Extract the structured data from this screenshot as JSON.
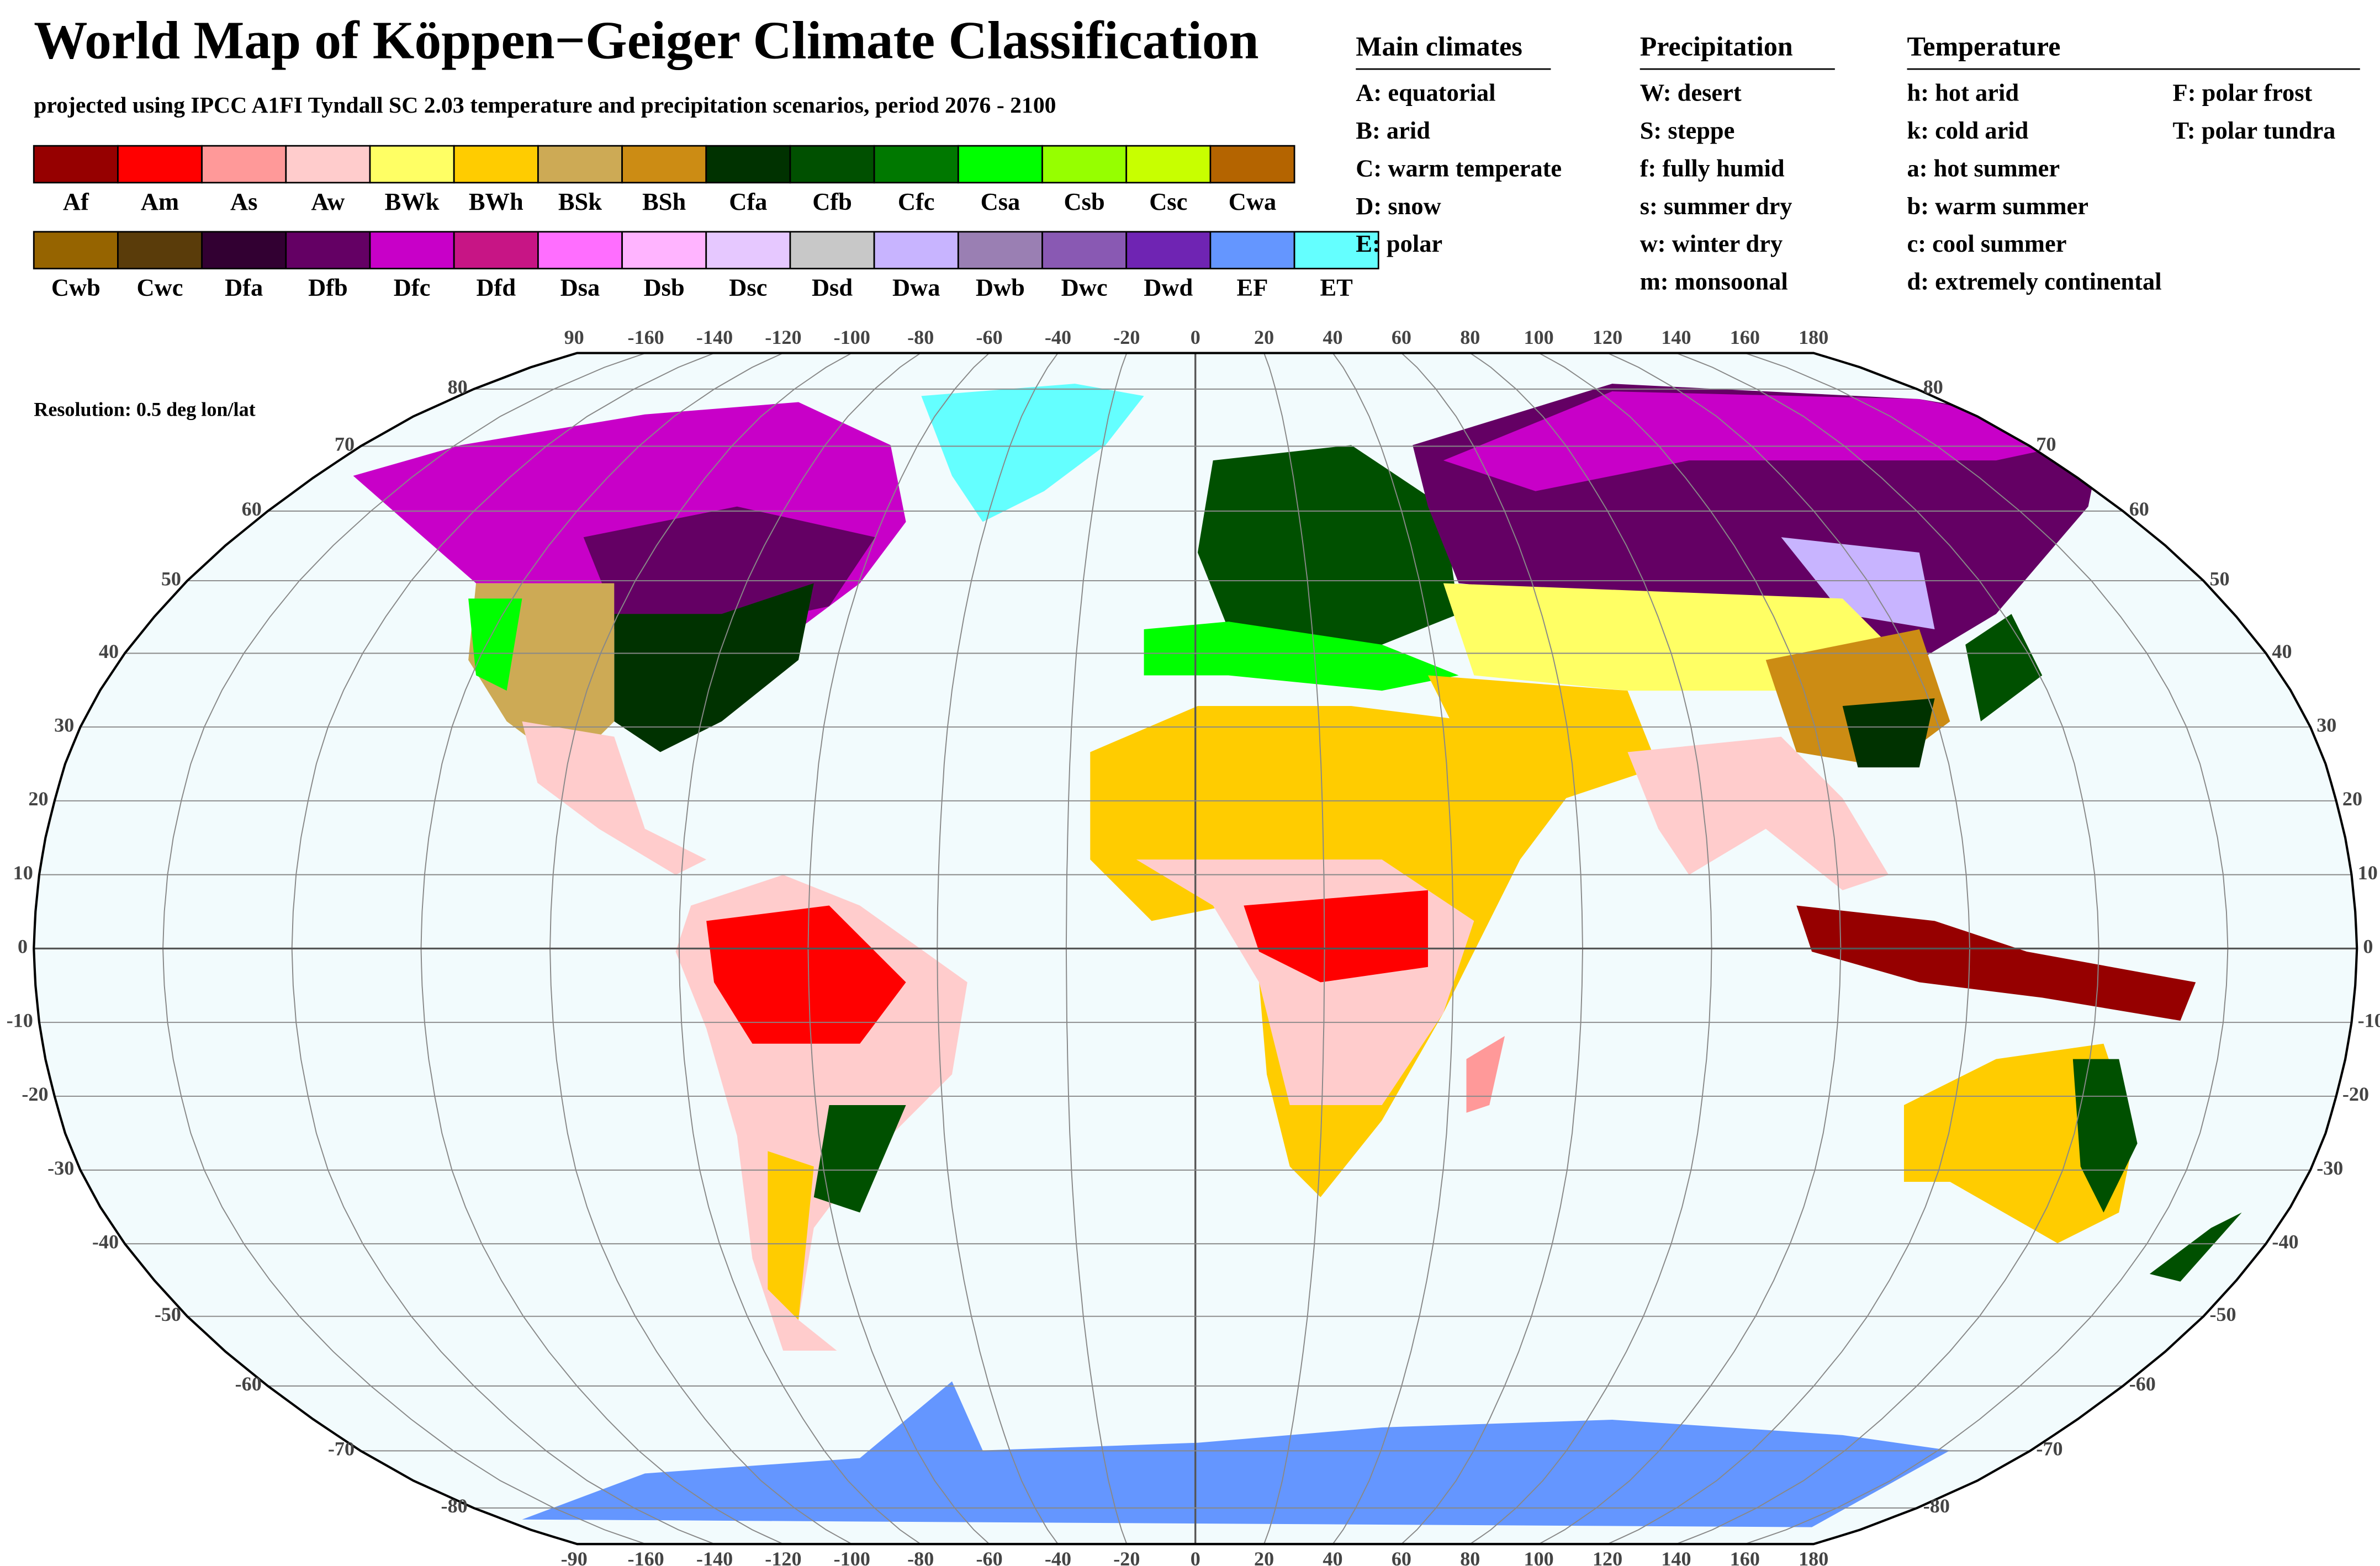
{
  "header": {
    "title": "World Map of Köppen−Geiger Climate Classification",
    "subtitle": "projected using IPCC A1FI Tyndall SC 2.03 temperature and precipitation scenarios, period 2076 - 2100"
  },
  "legend": {
    "rows": [
      [
        {
          "code": "Af",
          "color": "#960000"
        },
        {
          "code": "Am",
          "color": "#ff0000"
        },
        {
          "code": "As",
          "color": "#ff9999"
        },
        {
          "code": "Aw",
          "color": "#ffcccc"
        },
        {
          "code": "BWk",
          "color": "#ffff64"
        },
        {
          "code": "BWh",
          "color": "#ffcc00"
        },
        {
          "code": "BSk",
          "color": "#cdaa55"
        },
        {
          "code": "BSh",
          "color": "#cc8c14"
        },
        {
          "code": "Cfa",
          "color": "#003200"
        },
        {
          "code": "Cfb",
          "color": "#005000"
        },
        {
          "code": "Cfc",
          "color": "#007800"
        },
        {
          "code": "Csa",
          "color": "#00ff00"
        },
        {
          "code": "Csb",
          "color": "#96ff00"
        },
        {
          "code": "Csc",
          "color": "#c8ff00"
        },
        {
          "code": "Cwa",
          "color": "#b46400"
        }
      ],
      [
        {
          "code": "Cwb",
          "color": "#966400"
        },
        {
          "code": "Cwc",
          "color": "#5a3c0a"
        },
        {
          "code": "Dfa",
          "color": "#320032"
        },
        {
          "code": "Dfb",
          "color": "#640064"
        },
        {
          "code": "Dfc",
          "color": "#c800c8"
        },
        {
          "code": "Dfd",
          "color": "#c71585"
        },
        {
          "code": "Dsa",
          "color": "#ff6eff"
        },
        {
          "code": "Dsb",
          "color": "#ffb4ff"
        },
        {
          "code": "Dsc",
          "color": "#e6c8ff"
        },
        {
          "code": "Dsd",
          "color": "#c8c8c8"
        },
        {
          "code": "Dwa",
          "color": "#c8b4ff"
        },
        {
          "code": "Dwb",
          "color": "#9a7fb3"
        },
        {
          "code": "Dwc",
          "color": "#8959b3"
        },
        {
          "code": "Dwd",
          "color": "#6f24b3"
        },
        {
          "code": "EF",
          "color": "#6496ff"
        },
        {
          "code": "ET",
          "color": "#64ffff"
        }
      ]
    ]
  },
  "key": {
    "main": {
      "title": "Main climates",
      "items": [
        "A: equatorial",
        "B: arid",
        "C: warm temperate",
        "D: snow",
        "E: polar"
      ]
    },
    "precipitation": {
      "title": "Precipitation",
      "items": [
        "W: desert",
        "S: steppe",
        "f: fully humid",
        "s: summer dry",
        "w: winter dry",
        "m: monsoonal"
      ]
    },
    "temperature": {
      "title": "Temperature",
      "items": [
        "h: hot arid",
        "k: cold arid",
        "a: hot summer",
        "b: warm summer",
        "c: cool summer",
        "d: extremely continental"
      ],
      "items2": [
        "F: polar frost",
        "T: polar tundra"
      ]
    }
  },
  "map": {
    "resolution": "Resolution: 0.5 deg lon/lat",
    "lon_ticks": [
      -160,
      -140,
      -120,
      -100,
      -80,
      -60,
      -40,
      -20,
      0,
      20,
      40,
      60,
      80,
      100,
      120,
      140,
      160,
      180
    ],
    "lat_ticks": [
      -90,
      -80,
      -70,
      -60,
      -50,
      -40,
      -30,
      -20,
      -10,
      0,
      10,
      20,
      30,
      40,
      50,
      60,
      70,
      80,
      90
    ]
  }
}
